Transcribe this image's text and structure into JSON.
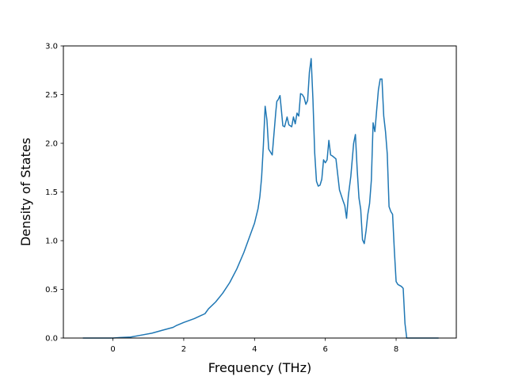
{
  "chart_data": {
    "type": "line",
    "title": "",
    "xlabel": "Frequency (THz)",
    "ylabel": "Density of States",
    "xlim": [
      -1.4,
      9.7
    ],
    "ylim": [
      0.0,
      3.0
    ],
    "xticks": [
      0,
      2,
      4,
      6,
      8
    ],
    "xtick_labels": [
      "0",
      "2",
      "4",
      "6",
      "8"
    ],
    "yticks": [
      0.0,
      0.5,
      1.0,
      1.5,
      2.0,
      2.5,
      3.0
    ],
    "ytick_labels": [
      "0.0",
      "0.5",
      "1.0",
      "1.5",
      "2.0",
      "2.5",
      "3.0"
    ],
    "grid": false,
    "legend": "none",
    "series": [
      {
        "color": "#1f77b4",
        "x": [
          -0.85,
          0.0,
          0.2,
          0.5,
          0.8,
          1.1,
          1.4,
          1.7,
          1.8,
          2.0,
          2.3,
          2.6,
          2.7,
          2.9,
          3.1,
          3.3,
          3.5,
          3.7,
          3.9,
          4.0,
          4.1,
          4.15,
          4.2,
          4.25,
          4.3,
          4.35,
          4.4,
          4.5,
          4.55,
          4.6,
          4.63,
          4.67,
          4.72,
          4.8,
          4.85,
          4.92,
          4.97,
          5.05,
          5.1,
          5.15,
          5.2,
          5.25,
          5.3,
          5.35,
          5.4,
          5.45,
          5.5,
          5.55,
          5.6,
          5.65,
          5.7,
          5.75,
          5.8,
          5.85,
          5.9,
          5.95,
          6.0,
          6.05,
          6.1,
          6.15,
          6.2,
          6.3,
          6.4,
          6.5,
          6.55,
          6.6,
          6.65,
          6.72,
          6.8,
          6.85,
          6.9,
          6.95,
          7.0,
          7.05,
          7.1,
          7.15,
          7.2,
          7.25,
          7.3,
          7.35,
          7.4,
          7.45,
          7.5,
          7.55,
          7.6,
          7.65,
          7.7,
          7.75,
          7.8,
          7.85,
          7.9,
          7.95,
          8.0,
          8.05,
          8.1,
          8.15,
          8.2,
          8.25,
          8.3,
          8.35,
          8.5,
          9.2
        ],
        "y": [
          0.0,
          0.0,
          0.005,
          0.01,
          0.03,
          0.05,
          0.08,
          0.11,
          0.13,
          0.16,
          0.2,
          0.25,
          0.3,
          0.37,
          0.46,
          0.57,
          0.71,
          0.88,
          1.08,
          1.18,
          1.33,
          1.45,
          1.65,
          1.98,
          2.38,
          2.24,
          1.94,
          1.88,
          2.1,
          2.32,
          2.43,
          2.45,
          2.49,
          2.18,
          2.17,
          2.27,
          2.19,
          2.17,
          2.27,
          2.2,
          2.31,
          2.28,
          2.51,
          2.5,
          2.47,
          2.4,
          2.44,
          2.73,
          2.87,
          2.45,
          1.9,
          1.61,
          1.56,
          1.57,
          1.63,
          1.83,
          1.8,
          1.83,
          2.03,
          1.88,
          1.87,
          1.84,
          1.52,
          1.41,
          1.36,
          1.23,
          1.46,
          1.66,
          2.0,
          2.09,
          1.73,
          1.44,
          1.32,
          1.01,
          0.97,
          1.1,
          1.27,
          1.38,
          1.62,
          2.21,
          2.12,
          2.34,
          2.55,
          2.66,
          2.66,
          2.28,
          2.12,
          1.89,
          1.35,
          1.3,
          1.27,
          0.9,
          0.58,
          0.55,
          0.54,
          0.53,
          0.51,
          0.15,
          0.0,
          0.0,
          0.0,
          0.0
        ]
      }
    ]
  }
}
